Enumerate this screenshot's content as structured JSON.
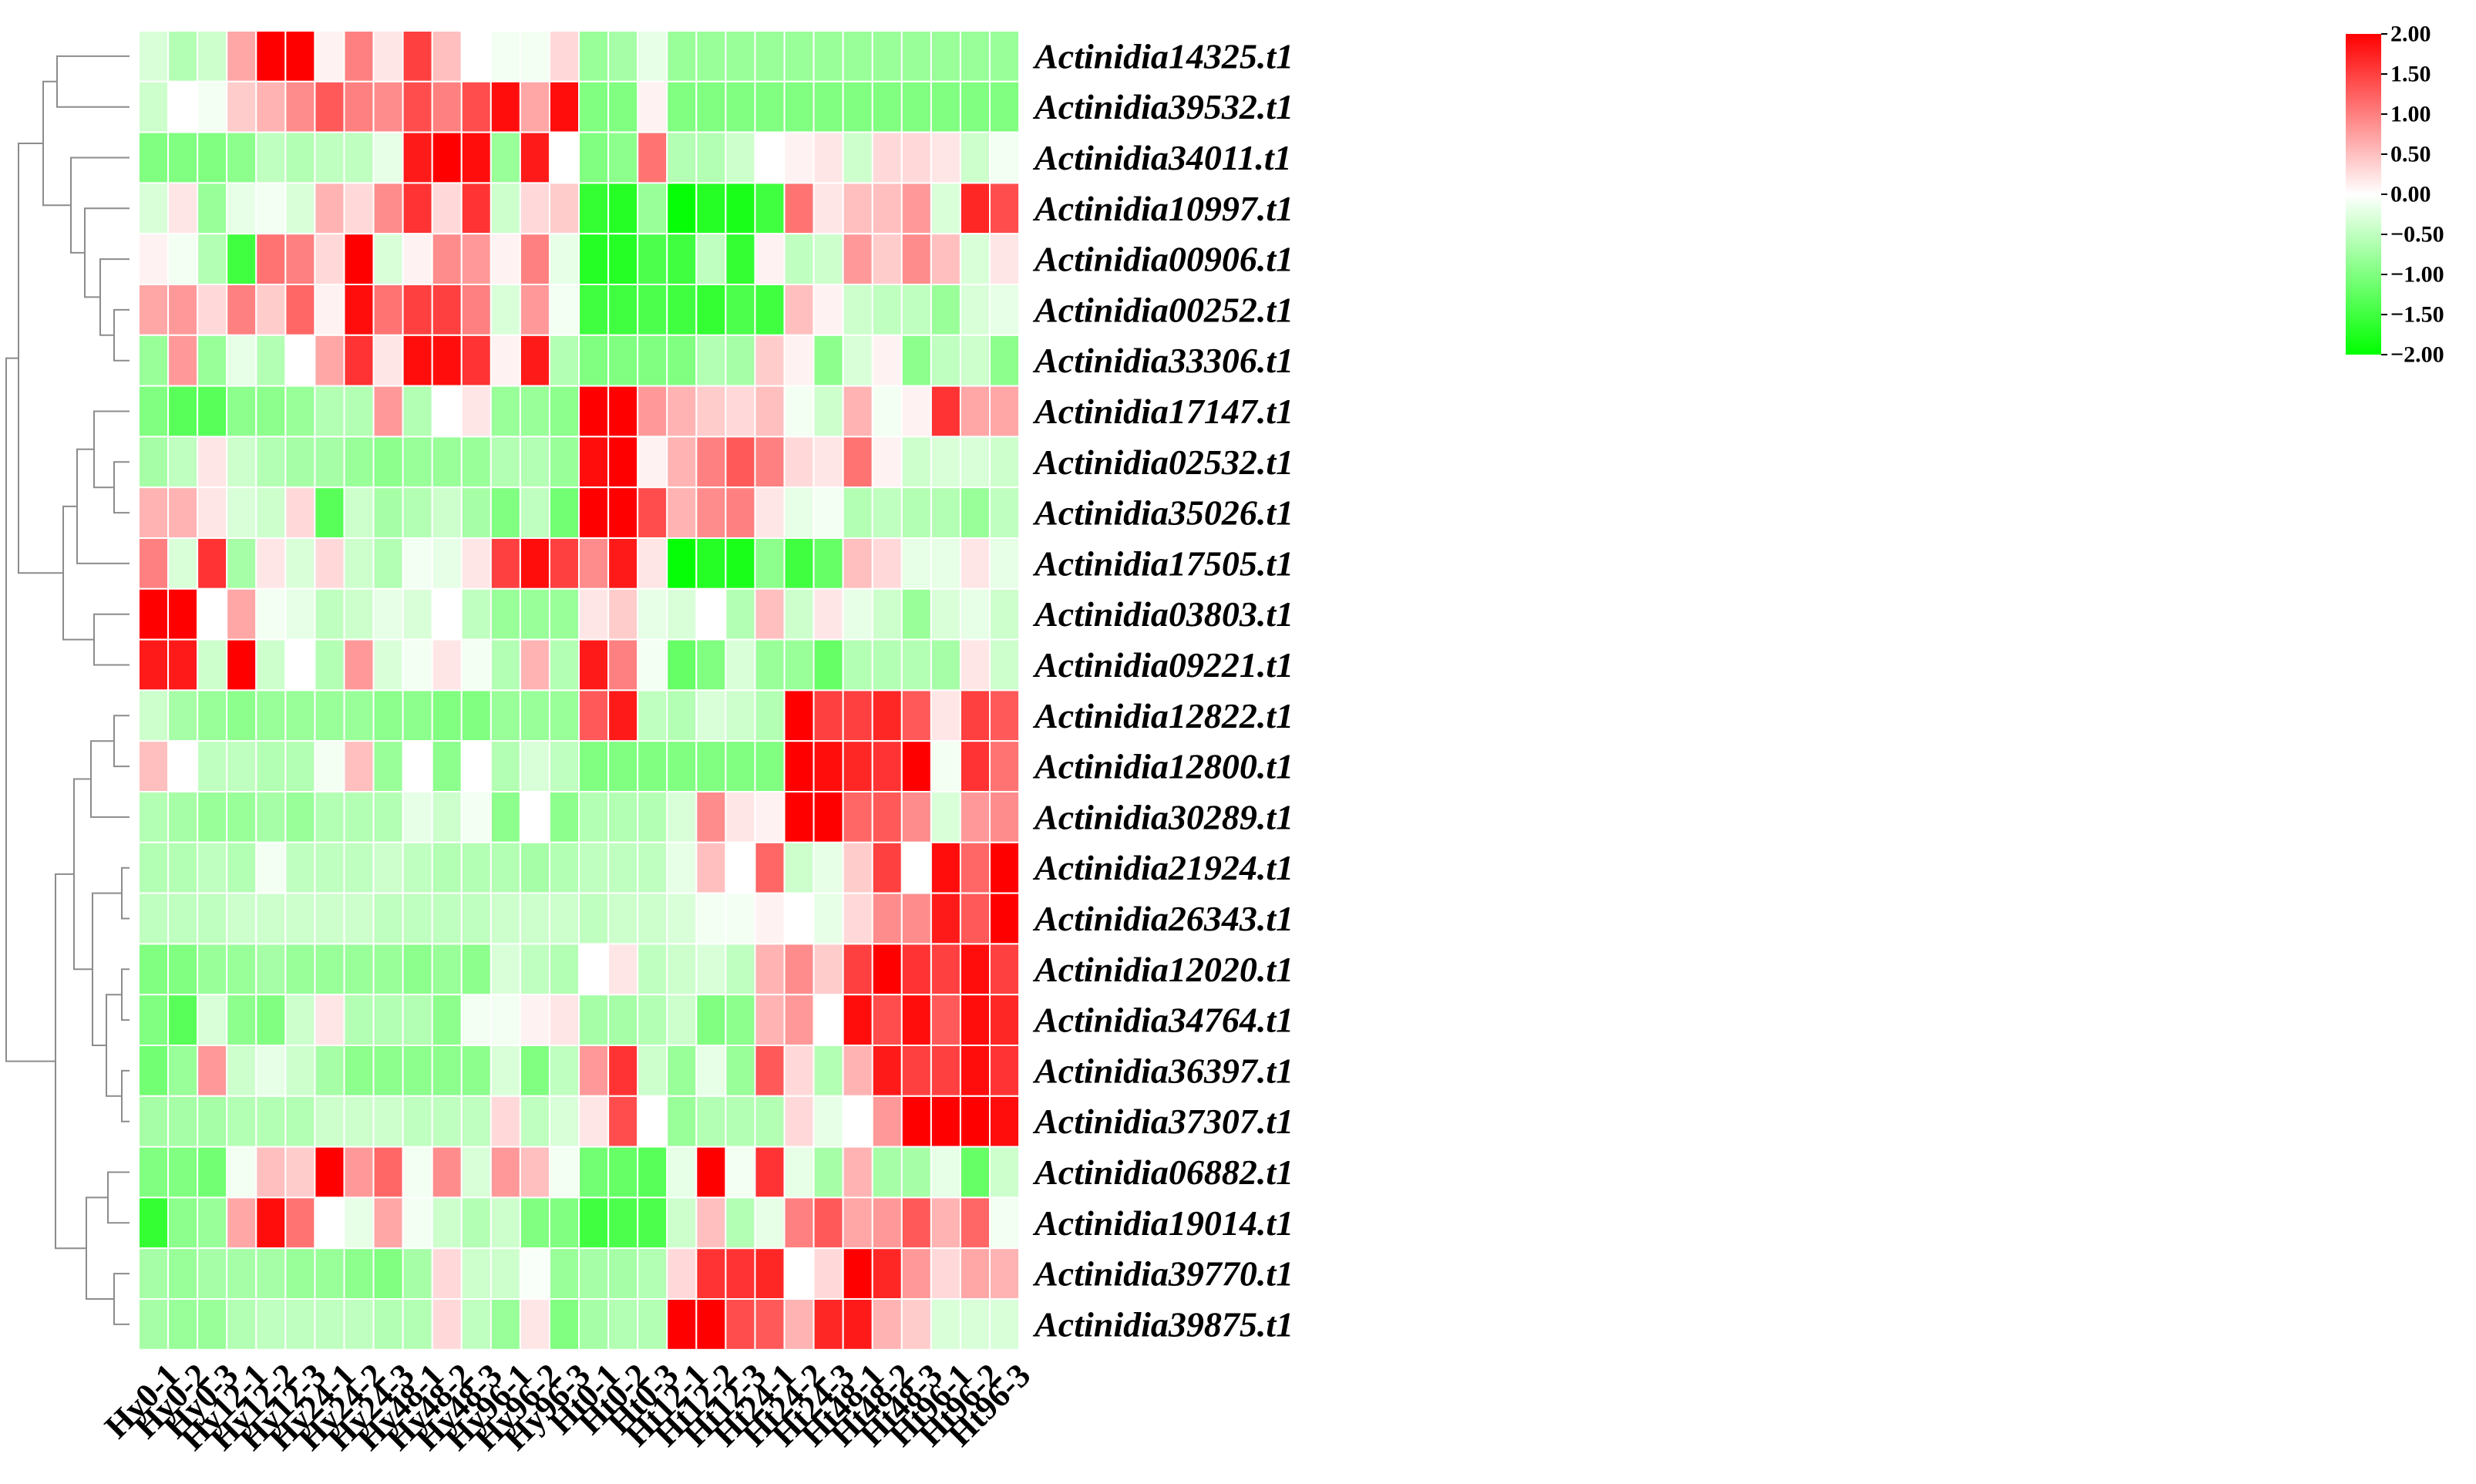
{
  "chart_data": {
    "type": "heatmap",
    "title": "",
    "xlabel": "",
    "ylabel": "",
    "color_scale": {
      "min": -2,
      "max": 2,
      "low_color": "#00ff00",
      "mid_color": "#ffffff",
      "high_color": "#ff0000"
    },
    "legend_ticks": [
      "2.00",
      "1.50",
      "1.00",
      "0.50",
      "0.00",
      "−0.50",
      "−1.00",
      "−1.50",
      "−2.00"
    ],
    "legend_placement": "top-right",
    "row_dendrogram": "left",
    "columns": [
      "Hy0-1",
      "Hy0-2",
      "Hy0-3",
      "Hy12-1",
      "Hy12-2",
      "Hy12-3",
      "Hy24-1",
      "Hy24-2",
      "Hy24-3",
      "Hy48-1",
      "Hy48-2",
      "Hy48-3",
      "Hy96-1",
      "Hy96-2",
      "Hy96-3",
      "Ht0-1",
      "Ht0-2",
      "Ht0-3",
      "Ht12-1",
      "Ht12-2",
      "Ht12-3",
      "Ht24-1",
      "Ht24-2",
      "Ht24-3",
      "Ht48-1",
      "Ht48-2",
      "Ht48-3",
      "Ht96-1",
      "Ht96-2",
      "Ht96-3"
    ],
    "rows": [
      "Actinidia14325.t1",
      "Actinidia39532.t1",
      "Actinidia34011.t1",
      "Actinidia10997.t1",
      "Actinidia00906.t1",
      "Actinidia00252.t1",
      "Actinidia33306.t1",
      "Actinidia17147.t1",
      "Actinidia02532.t1",
      "Actinidia35026.t1",
      "Actinidia17505.t1",
      "Actinidia03803.t1",
      "Actinidia09221.t1",
      "Actinidia12822.t1",
      "Actinidia12800.t1",
      "Actinidia30289.t1",
      "Actinidia21924.t1",
      "Actinidia26343.t1",
      "Actinidia12020.t1",
      "Actinidia34764.t1",
      "Actinidia36397.t1",
      "Actinidia37307.t1",
      "Actinidia06882.t1",
      "Actinidia19014.t1",
      "Actinidia39770.t1",
      "Actinidia39875.t1"
    ],
    "values": [
      [
        -0.3,
        -0.6,
        -0.4,
        0.7,
        2.0,
        2.0,
        0.1,
        1.0,
        0.2,
        1.5,
        0.5,
        0.0,
        -0.1,
        -0.1,
        0.3,
        -0.8,
        -0.7,
        -0.2,
        -0.8,
        -0.8,
        -0.8,
        -0.8,
        -0.8,
        -0.8,
        -0.8,
        -0.8,
        -0.8,
        -0.8,
        -0.8,
        -0.8
      ],
      [
        -0.4,
        0.0,
        -0.1,
        0.4,
        0.6,
        0.9,
        1.3,
        1.0,
        0.9,
        1.4,
        1.0,
        1.4,
        1.9,
        0.7,
        1.9,
        -1.0,
        -1.0,
        0.1,
        -1.0,
        -1.0,
        -1.0,
        -1.0,
        -1.0,
        -1.0,
        -1.0,
        -1.0,
        -1.0,
        -1.0,
        -1.0,
        -1.0
      ],
      [
        -1.0,
        -1.0,
        -1.0,
        -0.9,
        -0.5,
        -0.6,
        -0.5,
        -0.5,
        -0.2,
        1.8,
        2.0,
        1.9,
        -0.8,
        1.8,
        0.0,
        -1.0,
        -0.9,
        1.1,
        -0.6,
        -0.6,
        -0.4,
        0.0,
        0.1,
        0.2,
        -0.4,
        0.3,
        0.3,
        0.2,
        -0.4,
        -0.1
      ],
      [
        -0.3,
        0.2,
        -0.8,
        -0.2,
        -0.1,
        -0.3,
        0.6,
        0.3,
        0.9,
        1.6,
        0.3,
        1.6,
        -0.4,
        0.3,
        0.4,
        -1.6,
        -1.7,
        -0.8,
        -1.95,
        -1.7,
        -1.8,
        -1.5,
        1.1,
        0.2,
        0.5,
        0.5,
        0.8,
        -0.3,
        1.7,
        1.4
      ],
      [
        0.1,
        -0.1,
        -0.6,
        -1.5,
        1.1,
        1.0,
        0.3,
        2.0,
        -0.3,
        0.1,
        0.9,
        0.8,
        0.1,
        1.0,
        -0.2,
        -1.7,
        -1.7,
        -1.4,
        -1.5,
        -0.5,
        -1.6,
        0.1,
        -0.5,
        -0.4,
        0.8,
        0.4,
        0.9,
        0.5,
        -0.3,
        0.2
      ],
      [
        0.7,
        0.8,
        0.3,
        1.0,
        0.4,
        1.2,
        0.1,
        1.9,
        1.1,
        1.5,
        1.5,
        1.0,
        -0.3,
        0.8,
        -0.1,
        -1.5,
        -1.5,
        -1.4,
        -1.5,
        -1.6,
        -1.4,
        -1.5,
        0.5,
        0.1,
        -0.4,
        -0.5,
        -0.5,
        -0.8,
        -0.3,
        -0.2
      ],
      [
        -0.8,
        0.8,
        -0.8,
        -0.2,
        -0.6,
        0.0,
        0.7,
        1.6,
        0.2,
        1.9,
        1.9,
        1.6,
        0.1,
        1.8,
        -0.6,
        -1.0,
        -1.0,
        -1.0,
        -1.0,
        -0.6,
        -0.7,
        0.4,
        0.1,
        -0.9,
        -0.3,
        0.1,
        -0.9,
        -0.5,
        -0.4,
        -0.9
      ],
      [
        -1.0,
        -1.3,
        -1.3,
        -0.9,
        -0.9,
        -0.8,
        -0.6,
        -0.6,
        0.8,
        -0.6,
        0.0,
        0.2,
        -0.8,
        -0.8,
        -0.9,
        2.0,
        2.0,
        0.8,
        0.6,
        0.4,
        0.3,
        0.5,
        -0.1,
        -0.4,
        0.6,
        -0.1,
        0.1,
        1.6,
        0.7,
        0.7
      ],
      [
        -0.7,
        -0.5,
        0.2,
        -0.4,
        -0.6,
        -0.7,
        -0.7,
        -0.8,
        -0.9,
        -0.8,
        -0.8,
        -0.8,
        -0.6,
        -0.6,
        -0.8,
        1.9,
        2.0,
        0.1,
        0.6,
        1.0,
        1.3,
        1.0,
        0.3,
        0.2,
        1.1,
        0.1,
        -0.4,
        -0.3,
        -0.3,
        -0.4
      ],
      [
        0.6,
        0.6,
        0.2,
        -0.3,
        -0.4,
        0.3,
        -1.3,
        -0.4,
        -0.7,
        -0.6,
        -0.4,
        -0.7,
        -1.0,
        -0.5,
        -1.1,
        2.0,
        2.0,
        1.4,
        0.6,
        0.9,
        1.0,
        0.2,
        -0.2,
        -0.1,
        -0.6,
        -0.5,
        -0.6,
        -0.6,
        -0.8,
        -0.5
      ],
      [
        1.0,
        -0.3,
        1.6,
        -0.7,
        0.2,
        -0.3,
        0.3,
        -0.4,
        -0.6,
        -0.1,
        -0.2,
        0.2,
        1.5,
        1.9,
        1.5,
        0.9,
        1.8,
        0.2,
        -1.95,
        -1.7,
        -1.8,
        -0.9,
        -1.5,
        -1.2,
        0.5,
        0.3,
        -0.2,
        -0.2,
        0.2,
        -0.2
      ],
      [
        2.0,
        2.0,
        0.0,
        0.7,
        -0.1,
        -0.2,
        -0.5,
        -0.4,
        -0.2,
        -0.3,
        0.0,
        -0.5,
        -0.8,
        -0.8,
        -0.8,
        0.2,
        0.4,
        -0.2,
        -0.3,
        0.0,
        -0.6,
        0.5,
        -0.4,
        0.2,
        -0.2,
        -0.4,
        -0.8,
        -0.3,
        -0.2,
        -0.4
      ],
      [
        1.8,
        1.8,
        -0.4,
        2.0,
        -0.4,
        0.0,
        -0.6,
        0.8,
        -0.3,
        -0.1,
        0.2,
        -0.1,
        -0.6,
        0.6,
        -0.6,
        1.8,
        1.0,
        -0.1,
        -1.2,
        -1.0,
        -0.3,
        -0.8,
        -0.8,
        -1.2,
        -0.6,
        -0.6,
        -0.6,
        -0.7,
        0.2,
        -0.4
      ],
      [
        -0.4,
        -0.7,
        -0.8,
        -0.9,
        -0.8,
        -0.8,
        -0.8,
        -0.8,
        -0.9,
        -0.9,
        -1.0,
        -1.0,
        -0.8,
        -0.8,
        -0.8,
        1.3,
        1.8,
        -0.5,
        -0.6,
        -0.3,
        -0.4,
        -0.6,
        2.0,
        1.5,
        1.5,
        1.7,
        1.3,
        0.2,
        1.5,
        1.3
      ],
      [
        0.5,
        0.0,
        -0.5,
        -0.5,
        -0.6,
        -0.6,
        -0.1,
        0.5,
        -0.8,
        0.0,
        -0.9,
        0.0,
        -0.6,
        -0.3,
        -0.5,
        -1.0,
        -1.0,
        -1.0,
        -1.0,
        -1.0,
        -1.0,
        -1.0,
        2.0,
        1.9,
        1.7,
        1.6,
        2.0,
        -0.1,
        1.6,
        1.1
      ],
      [
        -0.6,
        -0.7,
        -0.8,
        -0.8,
        -0.7,
        -0.8,
        -0.6,
        -0.6,
        -0.6,
        -0.2,
        -0.4,
        -0.1,
        -0.9,
        0.0,
        -0.9,
        -0.6,
        -0.6,
        -0.6,
        -0.3,
        0.9,
        0.2,
        0.1,
        2.0,
        2.0,
        1.2,
        1.3,
        0.9,
        -0.3,
        0.8,
        0.9
      ],
      [
        -0.6,
        -0.6,
        -0.5,
        -0.6,
        -0.1,
        -0.5,
        -0.5,
        -0.5,
        -0.4,
        -0.5,
        -0.6,
        -0.6,
        -0.6,
        -0.7,
        -0.6,
        -0.5,
        -0.5,
        -0.5,
        -0.2,
        0.5,
        0.0,
        1.2,
        -0.4,
        -0.2,
        0.4,
        1.5,
        0.0,
        1.9,
        1.2,
        2.0
      ],
      [
        -0.5,
        -0.5,
        -0.5,
        -0.4,
        -0.4,
        -0.4,
        -0.4,
        -0.4,
        -0.5,
        -0.5,
        -0.5,
        -0.5,
        -0.4,
        -0.4,
        -0.4,
        -0.5,
        -0.4,
        -0.4,
        -0.3,
        -0.1,
        -0.1,
        0.1,
        0.0,
        -0.2,
        0.3,
        0.9,
        0.9,
        1.8,
        1.3,
        2.0
      ],
      [
        -1.0,
        -1.0,
        -0.8,
        -0.8,
        -0.7,
        -0.8,
        -0.8,
        -0.8,
        -0.8,
        -0.9,
        -0.8,
        -0.9,
        -0.3,
        -0.5,
        -0.6,
        0.0,
        0.2,
        -0.5,
        -0.4,
        -0.3,
        -0.5,
        0.6,
        0.9,
        0.4,
        1.5,
        2.0,
        1.6,
        1.5,
        1.9,
        1.5
      ],
      [
        -1.0,
        -1.3,
        -0.3,
        -0.9,
        -1.0,
        -0.4,
        0.2,
        -0.6,
        -0.6,
        -0.6,
        -0.9,
        -0.1,
        -0.1,
        0.1,
        0.2,
        -0.7,
        -0.7,
        -0.6,
        -0.4,
        -1.0,
        -0.9,
        0.6,
        0.8,
        0.0,
        1.9,
        1.4,
        1.9,
        1.3,
        1.9,
        1.7
      ],
      [
        -1.1,
        -0.8,
        0.8,
        -0.4,
        -0.2,
        -0.4,
        -0.7,
        -0.9,
        -0.9,
        -0.9,
        -0.9,
        -0.9,
        -0.3,
        -1.0,
        -0.5,
        0.8,
        1.6,
        -0.4,
        -0.8,
        -0.2,
        -0.8,
        1.3,
        0.3,
        -0.6,
        0.6,
        1.8,
        1.5,
        1.5,
        1.9,
        1.6
      ],
      [
        -0.7,
        -0.7,
        -0.7,
        -0.6,
        -0.6,
        -0.6,
        -0.4,
        -0.4,
        -0.4,
        -0.5,
        -0.5,
        -0.5,
        0.3,
        -0.5,
        -0.3,
        0.2,
        1.4,
        0.0,
        -0.8,
        -0.6,
        -0.6,
        -0.6,
        0.3,
        -0.2,
        0.0,
        0.8,
        2.0,
        2.0,
        2.0,
        1.9
      ],
      [
        -1.0,
        -1.0,
        -1.1,
        -0.1,
        0.5,
        0.4,
        2.0,
        0.8,
        1.2,
        -0.1,
        0.9,
        -0.3,
        0.8,
        0.5,
        -0.1,
        -1.1,
        -1.2,
        -1.3,
        -0.2,
        2.0,
        -0.1,
        1.6,
        -0.2,
        -0.7,
        0.6,
        -0.7,
        -0.7,
        -0.2,
        -1.2,
        -0.4
      ],
      [
        -1.6,
        -0.9,
        -0.8,
        0.7,
        1.9,
        1.1,
        0.0,
        -0.2,
        0.7,
        -0.1,
        -0.4,
        -0.6,
        -0.4,
        -1.0,
        -1.0,
        -1.5,
        -1.4,
        -1.4,
        -0.4,
        0.5,
        -0.6,
        -0.2,
        1.0,
        1.3,
        0.7,
        0.8,
        1.3,
        0.6,
        1.2,
        -0.1
      ],
      [
        -0.7,
        -0.8,
        -0.7,
        -0.7,
        -0.7,
        -0.8,
        -0.8,
        -0.9,
        -1.0,
        -0.7,
        0.3,
        -0.4,
        -0.4,
        -0.05,
        -0.8,
        -0.7,
        -0.7,
        -0.6,
        0.3,
        1.6,
        1.6,
        1.7,
        0.0,
        0.3,
        2.0,
        1.7,
        0.8,
        0.3,
        0.7,
        0.6
      ],
      [
        -0.7,
        -0.8,
        -0.8,
        -0.6,
        -0.5,
        -0.5,
        -0.5,
        -0.5,
        -0.6,
        -0.6,
        0.3,
        -0.5,
        -0.8,
        0.2,
        -1.0,
        -0.7,
        -0.6,
        -0.6,
        2.0,
        2.0,
        1.4,
        1.3,
        0.6,
        1.7,
        1.8,
        0.6,
        0.4,
        -0.3,
        -0.3,
        -0.3
      ]
    ]
  }
}
